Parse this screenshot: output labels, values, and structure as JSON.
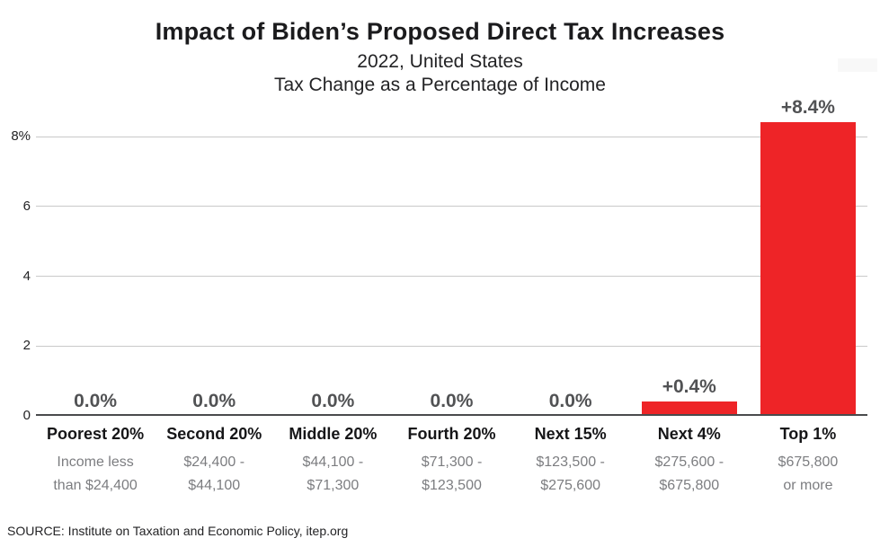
{
  "header": {
    "title": "Impact of Biden’s Proposed Direct Tax Increases",
    "subtitle_line1": "2022, United States",
    "subtitle_line2": "Tax Change as a Percentage of Income"
  },
  "chart_data": {
    "type": "bar",
    "title": "Impact of Biden’s Proposed Direct Tax Increases",
    "subtitle": [
      "2022, United States",
      "Tax Change as a Percentage of Income"
    ],
    "categories": [
      "Poorest 20%",
      "Second 20%",
      "Middle 20%",
      "Fourth 20%",
      "Next 15%",
      "Next 4%",
      "Top 1%"
    ],
    "income_ranges": [
      [
        "Income less",
        "than $24,400"
      ],
      [
        "$24,400 -",
        "$44,100"
      ],
      [
        "$44,100 -",
        "$71,300"
      ],
      [
        "$71,300 -",
        "$123,500"
      ],
      [
        "$123,500 -",
        "$275,600"
      ],
      [
        "$275,600 -",
        "$675,800"
      ],
      [
        "$675,800",
        "or more"
      ]
    ],
    "values": [
      0.0,
      0.0,
      0.0,
      0.0,
      0.0,
      0.4,
      8.4
    ],
    "value_labels": [
      "0.0%",
      "0.0%",
      "0.0%",
      "0.0%",
      "0.0%",
      "+0.4%",
      "+8.4%"
    ],
    "xlabel": "",
    "ylabel": "",
    "ylim": [
      0,
      8.8
    ],
    "yticks": [
      {
        "value": 0,
        "label": "0"
      },
      {
        "value": 2,
        "label": "2"
      },
      {
        "value": 4,
        "label": "4"
      },
      {
        "value": 6,
        "label": "6"
      },
      {
        "value": 8,
        "label": "8%"
      }
    ],
    "grid": true,
    "legend": null,
    "colors": {
      "bar": "#EE2427",
      "value_label": "#515254",
      "category_label": "#161618",
      "range_label": "#7c7d80",
      "gridline": "#c9c9c9",
      "axis_line": "#4a4b4d"
    }
  },
  "footer": {
    "source": "SOURCE: Institute on Taxation and Economic Policy, itep.org"
  }
}
